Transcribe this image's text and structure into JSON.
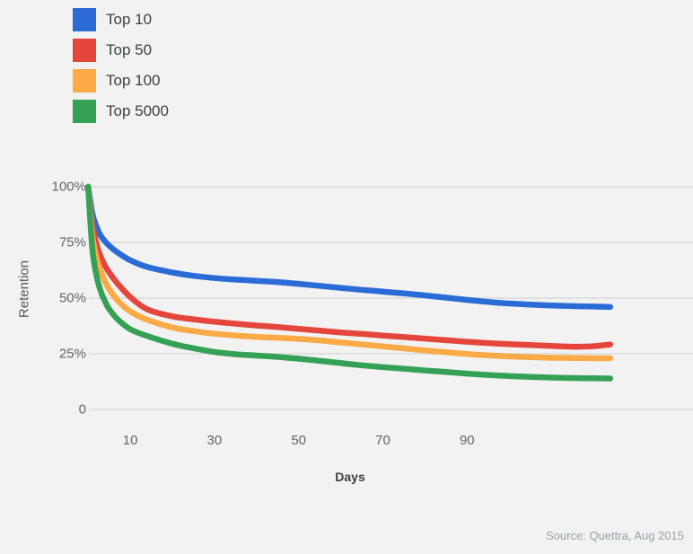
{
  "page": {
    "background": "#f2f2f2",
    "source_note": "Source: Quettra, Aug 2015"
  },
  "colors": {
    "background": "#f2f2f2",
    "gridline": "#e0e0e0",
    "axis_text": "#5f6368",
    "legend_text": "#3c4043",
    "source_text": "#9aa0a6"
  },
  "chart_data": {
    "type": "line",
    "title": "",
    "xlabel": "Days",
    "ylabel": "Retention",
    "legend_position": "top-left",
    "grid": "horizontal",
    "xlim": [
      0,
      143
    ],
    "ylim": [
      0,
      100
    ],
    "x_ticks": [
      10,
      30,
      50,
      70,
      90
    ],
    "y_ticks": [
      {
        "label": "100%",
        "value": 100
      },
      {
        "label": "75%",
        "value": 75
      },
      {
        "label": "50%",
        "value": 50
      },
      {
        "label": "25%",
        "value": 25
      },
      {
        "label": "0",
        "value": 0
      }
    ],
    "x_unit": "days",
    "x": [
      0,
      1,
      2,
      3,
      4,
      5,
      7,
      10,
      14,
      20,
      25,
      30,
      35,
      40,
      45,
      50,
      55,
      60,
      65,
      70,
      75,
      80,
      85,
      90,
      95,
      100,
      105,
      110,
      115,
      120,
      124
    ],
    "series": [
      {
        "name": "Top 10",
        "color": "#2b6bd6",
        "values": [
          100,
          88,
          82,
          78,
          75.5,
          73.5,
          70.5,
          67,
          64,
          61.5,
          60,
          59,
          58.3,
          57.8,
          57.2,
          56.4,
          55.5,
          54.6,
          53.7,
          52.9,
          52.1,
          51.2,
          50.2,
          49.2,
          48.3,
          47.6,
          47.1,
          46.7,
          46.4,
          46.2,
          46
        ]
      },
      {
        "name": "Top 50",
        "color": "#e5463b",
        "values": [
          100,
          83,
          74,
          68.5,
          64.5,
          61.5,
          56.5,
          50.5,
          45,
          41.8,
          40.5,
          39.4,
          38.5,
          37.7,
          37,
          36.2,
          35.4,
          34.6,
          33.9,
          33.2,
          32.5,
          31.8,
          31.1,
          30.4,
          29.8,
          29.3,
          28.9,
          28.5,
          28.2,
          28.4,
          29.2
        ]
      },
      {
        "name": "Top 100",
        "color": "#fbaa46",
        "values": [
          100,
          78,
          68,
          62,
          57.5,
          54,
          49,
          44,
          40.3,
          36.8,
          35.2,
          34,
          33.2,
          32.6,
          32.2,
          31.7,
          31,
          30.1,
          29.2,
          28.3,
          27.4,
          26.5,
          25.7,
          24.9,
          24.3,
          23.8,
          23.5,
          23.2,
          23.1,
          23,
          23
        ]
      },
      {
        "name": "Top 5000",
        "color": "#35a155",
        "values": [
          100,
          72,
          60,
          53,
          48.5,
          45,
          40.5,
          36,
          33,
          29.5,
          27.5,
          25.8,
          24.8,
          24.2,
          23.6,
          22.8,
          21.8,
          20.8,
          19.8,
          19,
          18.3,
          17.5,
          16.8,
          16.1,
          15.5,
          15,
          14.6,
          14.3,
          14.1,
          14,
          13.9
        ]
      }
    ]
  }
}
